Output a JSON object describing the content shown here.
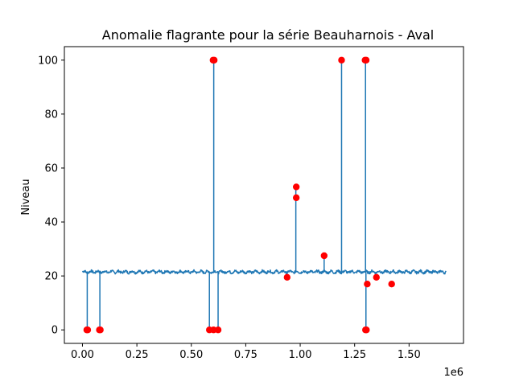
{
  "chart_data": {
    "type": "line",
    "title": "Anomalie flagrante pour la série Beauharnois - Aval",
    "xlabel": "",
    "ylabel": "Niveau",
    "x_offset_text": "1e6",
    "xlim": [
      -0.083,
      1.75
    ],
    "ylim": [
      -5,
      105
    ],
    "x_ticks": [
      0.0,
      0.25,
      0.5,
      0.75,
      1.0,
      1.25,
      1.5
    ],
    "x_tick_labels": [
      "0.00",
      "0.25",
      "0.50",
      "0.75",
      "1.00",
      "1.25",
      "1.50"
    ],
    "y_ticks": [
      0,
      20,
      40,
      60,
      80,
      100
    ],
    "y_tick_labels": [
      "0",
      "20",
      "40",
      "60",
      "80",
      "100"
    ],
    "grid": false,
    "series_color": "#1f77b4",
    "anomaly_color": "#ff0000",
    "series": [
      {
        "kind": "line",
        "baseline": 21.5,
        "x_range": [
          0.0,
          1.67
        ],
        "spikes": [
          {
            "x": 0.022,
            "y": 0
          },
          {
            "x": 0.08,
            "y": 0
          },
          {
            "x": 0.583,
            "y": 0
          },
          {
            "x": 0.603,
            "y": 100
          },
          {
            "x": 0.623,
            "y": 0
          },
          {
            "x": 0.94,
            "y": 19.5
          },
          {
            "x": 0.98,
            "y": 53
          },
          {
            "x": 1.11,
            "y": 27.5
          },
          {
            "x": 1.19,
            "y": 100
          },
          {
            "x": 1.3,
            "y": 100
          },
          {
            "x": 1.302,
            "y": 0
          }
        ]
      },
      {
        "kind": "scatter",
        "points": [
          {
            "x": 0.02,
            "y": 0
          },
          {
            "x": 0.024,
            "y": 0
          },
          {
            "x": 0.078,
            "y": 0
          },
          {
            "x": 0.082,
            "y": 0
          },
          {
            "x": 0.583,
            "y": 0
          },
          {
            "x": 0.602,
            "y": 0
          },
          {
            "x": 0.623,
            "y": 0
          },
          {
            "x": 0.6,
            "y": 100
          },
          {
            "x": 0.605,
            "y": 100
          },
          {
            "x": 0.94,
            "y": 19.5
          },
          {
            "x": 0.982,
            "y": 53
          },
          {
            "x": 0.982,
            "y": 49
          },
          {
            "x": 1.11,
            "y": 27.5
          },
          {
            "x": 1.19,
            "y": 100
          },
          {
            "x": 1.298,
            "y": 100
          },
          {
            "x": 1.303,
            "y": 100
          },
          {
            "x": 1.3,
            "y": 0
          },
          {
            "x": 1.304,
            "y": 0
          },
          {
            "x": 1.308,
            "y": 17
          },
          {
            "x": 1.35,
            "y": 19.5
          },
          {
            "x": 1.42,
            "y": 17
          }
        ]
      }
    ]
  }
}
